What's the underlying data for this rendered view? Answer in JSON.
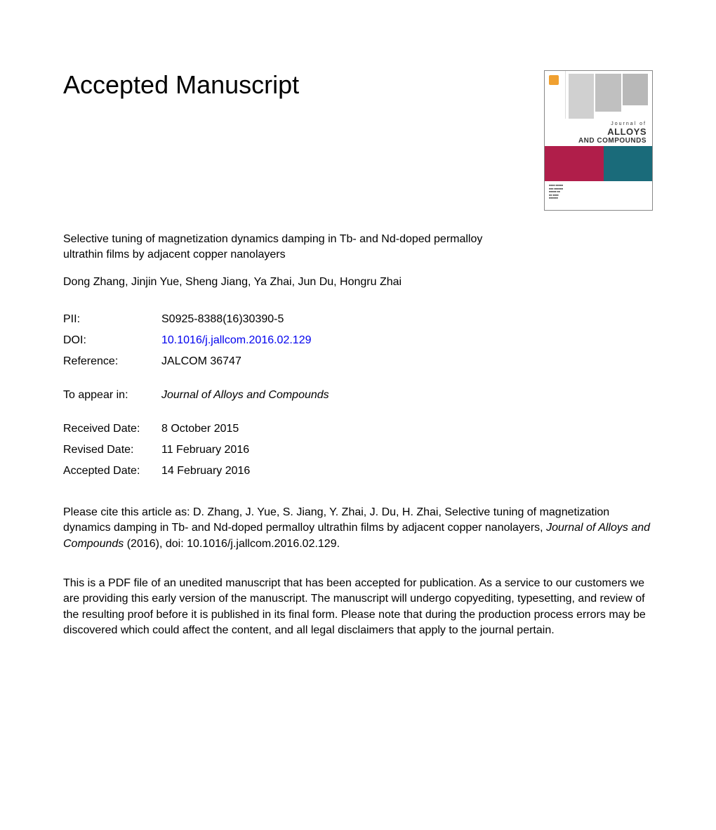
{
  "header": {
    "title": "Accepted Manuscript"
  },
  "journal_cover": {
    "journal_of": "Journal of",
    "alloys": "ALLOYS",
    "and_compounds": "AND COMPOUNDS",
    "colors": {
      "left_block": "#b01e4a",
      "right_block": "#1a6b7a",
      "bar1": "#d0d0d0",
      "bar2": "#c0c0c0",
      "bar3": "#b8b8b8"
    }
  },
  "article": {
    "title": "Selective tuning of magnetization dynamics damping in Tb- and Nd-doped permalloy ultrathin films by adjacent copper nanolayers",
    "authors": "Dong Zhang, Jinjin Yue, Sheng Jiang, Ya Zhai, Jun Du, Hongru Zhai"
  },
  "meta": {
    "pii_label": "PII:",
    "pii_value": "S0925-8388(16)30390-5",
    "doi_label": "DOI:",
    "doi_value": "10.1016/j.jallcom.2016.02.129",
    "reference_label": "Reference:",
    "reference_value": "JALCOM 36747",
    "appear_label": "To appear in:",
    "appear_value": "Journal of Alloys and Compounds",
    "received_label": "Received Date:",
    "received_value": "8 October 2015",
    "revised_label": "Revised Date:",
    "revised_value": "11 February 2016",
    "accepted_label": "Accepted Date:",
    "accepted_value": "14 February 2016"
  },
  "citation": {
    "prefix": "Please cite this article as: D. Zhang, J. Yue, S. Jiang, Y. Zhai, J. Du, H. Zhai, Selective tuning of magnetization dynamics damping in Tb- and Nd-doped permalloy ultrathin films by adjacent copper nanolayers, ",
    "journal": "Journal of Alloys and Compounds",
    "suffix": " (2016), doi: 10.1016/j.jallcom.2016.02.129."
  },
  "disclaimer": "This is a PDF file of an unedited manuscript that has been accepted for publication. As a service to our customers we are providing this early version of the manuscript. The manuscript will undergo copyediting, typesetting, and review of the resulting proof before it is published in its final form. Please note that during the production process errors may be discovered which could affect the content, and all legal disclaimers that apply to the journal pertain."
}
